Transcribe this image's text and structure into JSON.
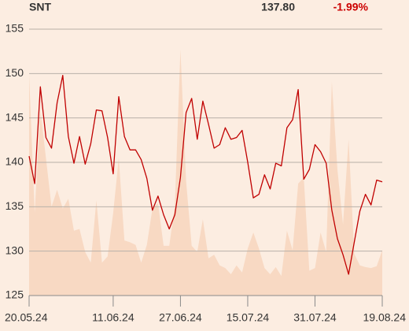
{
  "chart_data": {
    "type": "line",
    "title": "SNT",
    "price_label": "137.80",
    "change_label": "-1.99%",
    "change_color": "#cc0000",
    "categories": [
      "20.05.24",
      null,
      null,
      null,
      null,
      null,
      null,
      null,
      null,
      null,
      null,
      null,
      null,
      null,
      null,
      "11.06.24",
      null,
      null,
      null,
      null,
      null,
      null,
      null,
      null,
      null,
      null,
      null,
      "27.06.24",
      null,
      null,
      null,
      null,
      null,
      null,
      null,
      null,
      null,
      null,
      null,
      "15.07.24",
      null,
      null,
      null,
      null,
      null,
      null,
      null,
      null,
      null,
      null,
      null,
      "31.07.24",
      null,
      null,
      null,
      null,
      null,
      null,
      null,
      null,
      null,
      null,
      null,
      "19.08.24"
    ],
    "series": [
      {
        "color": "#c00000",
        "values": [
          140.7,
          137.6,
          148.5,
          142.8,
          141.6,
          146.7,
          149.8,
          142.9,
          139.9,
          142.9,
          139.8,
          142.1,
          145.9,
          145.8,
          142.8,
          138.7,
          147.4,
          142.9,
          141.4,
          141.4,
          140.3,
          138.2,
          134.6,
          136.2,
          134.1,
          132.5,
          134.1,
          138.3,
          145.6,
          147.2,
          142.6,
          146.9,
          144.3,
          141.6,
          142.0,
          143.9,
          142.6,
          142.8,
          143.6,
          140.0,
          136.0,
          136.4,
          138.6,
          137.0,
          139.9,
          139.6,
          143.9,
          144.8,
          148.2,
          138.1,
          139.2,
          142.0,
          141.2,
          139.9,
          134.6,
          131.4,
          129.6,
          127.4,
          131.0,
          134.5,
          136.4,
          135.2,
          138.0,
          137.8
        ]
      }
    ],
    "area": {
      "color": "#f8d9c3",
      "values": [
        149.9,
        134.3,
        145.9,
        140.5,
        135.0,
        136.9,
        134.8,
        135.9,
        132.3,
        132.5,
        129.9,
        128.7,
        135.7,
        128.7,
        129.4,
        134.3,
        140.5,
        131.2,
        131.0,
        130.7,
        128.7,
        130.7,
        134.8,
        135.4,
        130.6,
        130.6,
        135.2,
        152.7,
        137.9,
        130.6,
        129.9,
        133.6,
        129.2,
        129.6,
        128.4,
        128.1,
        127.4,
        128.4,
        127.6,
        130.3,
        132.1,
        130.3,
        128.1,
        127.4,
        128.2,
        127.2,
        132.3,
        130.1,
        137.6,
        138.3,
        127.8,
        128.1,
        132.1,
        129.9,
        149.1,
        139.2,
        133.0,
        142.6,
        129.7,
        128.4,
        128.2,
        128.1,
        128.3,
        130.1
      ]
    },
    "ylim": [
      125,
      155
    ],
    "yticks": [
      125,
      130,
      135,
      140,
      145,
      150,
      155
    ],
    "grid": true
  }
}
